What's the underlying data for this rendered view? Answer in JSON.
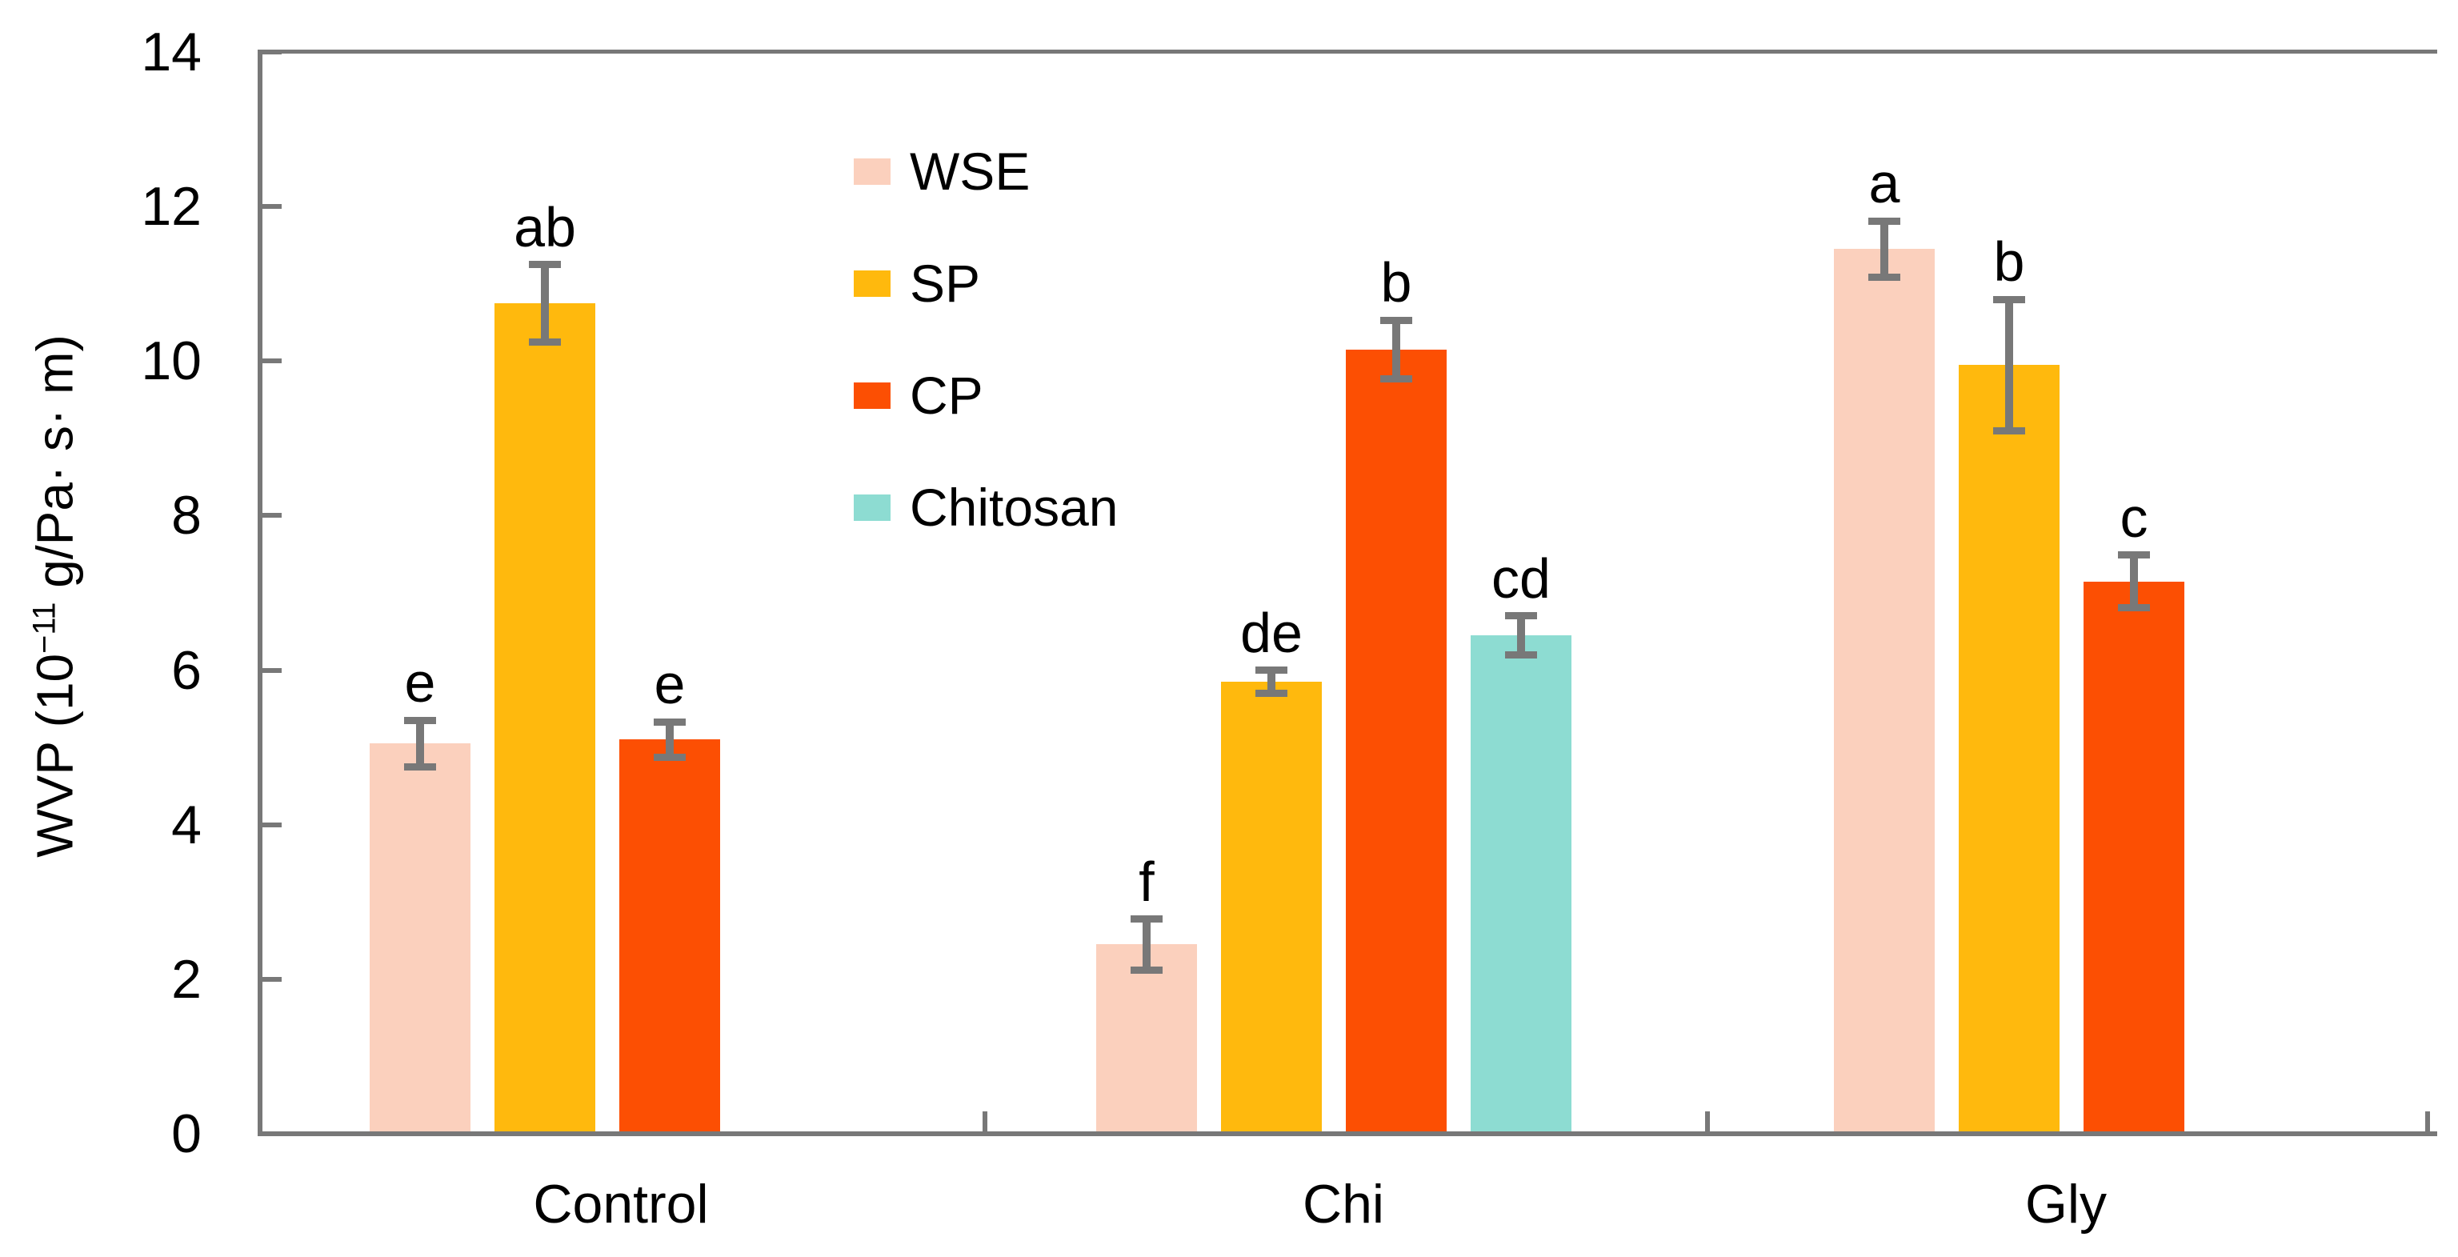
{
  "chart_data": {
    "type": "bar",
    "title": "",
    "ylabel": "WVP (10-11 g/Pa· s· m)",
    "ylabel_parts": {
      "prefix": "WVP (10",
      "superscript": "−11",
      "suffix": " g/Pa· s· m)"
    },
    "xlabel": "",
    "categories": [
      "Control",
      "Chi",
      "Gly"
    ],
    "series": [
      {
        "name": "WSE",
        "color": "#FBD0BD",
        "values": [
          5.05,
          2.45,
          11.45
        ],
        "errors": [
          0.3,
          0.33,
          0.36
        ],
        "letters": [
          "e",
          "f",
          "a"
        ]
      },
      {
        "name": "SP",
        "color": "#FFB90D",
        "values": [
          10.75,
          5.85,
          9.95
        ],
        "errors": [
          0.5,
          0.15,
          0.85
        ],
        "letters": [
          "ab",
          "de",
          "b"
        ]
      },
      {
        "name": "CP",
        "color": "#FC4F03",
        "values": [
          5.1,
          10.15,
          7.15
        ],
        "errors": [
          0.23,
          0.38,
          0.34
        ],
        "letters": [
          "e",
          "b",
          "c"
        ]
      },
      {
        "name": "Chitosan",
        "color": "#8DDCD2",
        "values": [
          null,
          6.45,
          null
        ],
        "errors": [
          null,
          0.25,
          null
        ],
        "letters": [
          null,
          "cd",
          null
        ]
      }
    ],
    "yticks": [
      0,
      2,
      4,
      6,
      8,
      10,
      12,
      14
    ],
    "ylim": [
      0,
      14
    ],
    "grid": false,
    "legend_position": "inside upper-left of plot, vertical",
    "axis_color": "#787878",
    "error_bar_color": "#787878",
    "text_color": "#000000"
  }
}
